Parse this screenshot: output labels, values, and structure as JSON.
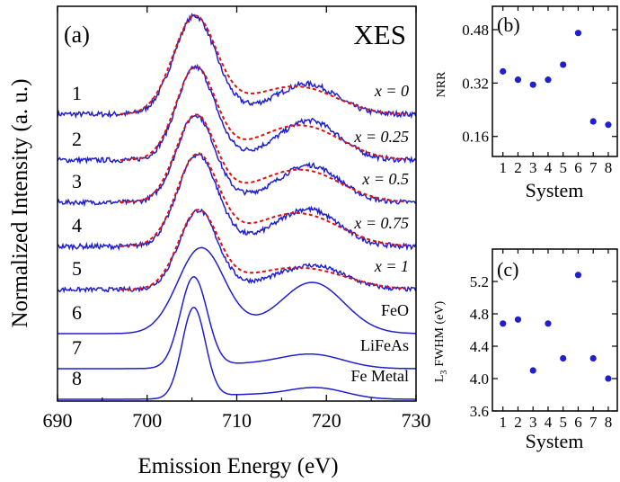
{
  "colors": {
    "measured": "#1f1fd0",
    "fit": "#e01010",
    "axis": "#000000"
  },
  "chart_data": [
    {
      "type": "line",
      "panel_label": "(a)",
      "title": "XES",
      "xlabel": "Emission Energy (eV)",
      "ylabel": "Normalized Intensity (a. u.)",
      "xlim": [
        690,
        730
      ],
      "x_ticks": [
        "690",
        "700",
        "710",
        "720",
        "730"
      ],
      "y_ticks": [],
      "series": [
        {
          "name": "1",
          "label": "x = 0",
          "main_peak": 705.3,
          "secondary_peak": 718.0,
          "secondary_rel": 0.3,
          "has_fit": true,
          "offset": 7
        },
        {
          "name": "2",
          "label": "x = 0.25",
          "main_peak": 705.4,
          "secondary_peak": 718.2,
          "secondary_rel": 0.42,
          "has_fit": true,
          "offset": 6
        },
        {
          "name": "3",
          "label": "x = 0.5",
          "main_peak": 705.4,
          "secondary_peak": 718.2,
          "secondary_rel": 0.42,
          "has_fit": true,
          "offset": 5
        },
        {
          "name": "4",
          "label": "x = 0.75",
          "main_peak": 705.6,
          "secondary_peak": 718.0,
          "secondary_rel": 0.4,
          "has_fit": true,
          "offset": 4
        },
        {
          "name": "5",
          "label": "x = 1",
          "main_peak": 705.7,
          "secondary_peak": 718.5,
          "secondary_rel": 0.3,
          "has_fit": true,
          "offset": 3
        },
        {
          "name": "6",
          "label": "FeO",
          "main_peak": 706.0,
          "secondary_peak": 718.5,
          "secondary_rel": 0.6,
          "has_fit": false,
          "offset": 2
        },
        {
          "name": "7",
          "label": "LiFeAs",
          "main_peak": 705.2,
          "secondary_peak": 718.5,
          "secondary_rel": 0.15,
          "has_fit": false,
          "offset": 1
        },
        {
          "name": "8",
          "label": "Fe Metal",
          "main_peak": 705.2,
          "secondary_peak": 719.0,
          "secondary_rel": 0.12,
          "has_fit": false,
          "offset": 0
        }
      ]
    },
    {
      "type": "scatter",
      "panel_label": "(b)",
      "xlabel": "System",
      "ylabel": "NRR",
      "xlim": [
        0.3,
        8.6
      ],
      "ylim": [
        0.1,
        0.55
      ],
      "x_ticks": [
        "1",
        "2",
        "3",
        "4",
        "5",
        "6",
        "7",
        "8"
      ],
      "y_ticks": [
        "0.16",
        "0.32",
        "0.48"
      ],
      "x": [
        1,
        2,
        3,
        4,
        5,
        6,
        7,
        8
      ],
      "y": [
        0.355,
        0.33,
        0.315,
        0.33,
        0.375,
        0.47,
        0.205,
        0.195
      ]
    },
    {
      "type": "scatter",
      "panel_label": "(c)",
      "xlabel": "System",
      "ylabel_main": "L",
      "ylabel_sub": "3",
      "ylabel_rest": "FWHM (eV)",
      "xlim": [
        0.3,
        8.6
      ],
      "ylim": [
        3.6,
        5.6
      ],
      "x_ticks": [
        "1",
        "2",
        "3",
        "4",
        "5",
        "6",
        "7",
        "8"
      ],
      "y_ticks": [
        "3.6",
        "4.0",
        "4.4",
        "4.8",
        "5.2"
      ],
      "x": [
        1,
        2,
        3,
        4,
        5,
        6,
        7,
        8
      ],
      "y": [
        4.68,
        4.73,
        4.1,
        4.68,
        4.25,
        5.28,
        4.25,
        4.0
      ]
    }
  ]
}
